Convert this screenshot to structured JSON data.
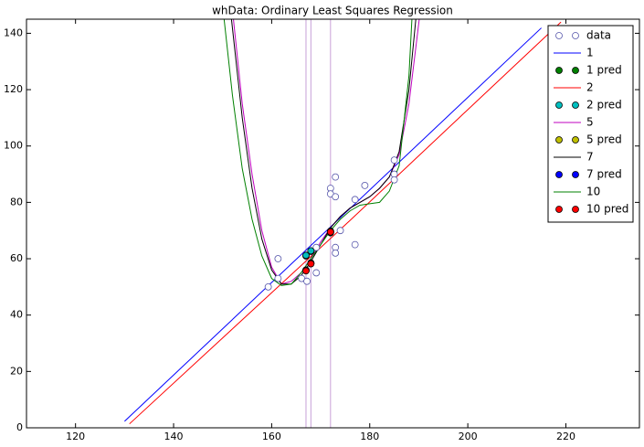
{
  "chart_data": {
    "type": "line",
    "title": "whData: Ordinary Least Squares Regression",
    "xlim": [
      110,
      235
    ],
    "ylim": [
      0,
      145
    ],
    "xticks": [
      120,
      140,
      160,
      180,
      200,
      220
    ],
    "yticks": [
      0,
      20,
      40,
      60,
      80,
      100,
      120,
      140
    ],
    "vlines": [
      167,
      168,
      172
    ],
    "vline_color": "#c8a0d8",
    "legend": "upper right",
    "series": [
      {
        "name": "data",
        "kind": "points",
        "color": "#ffffff",
        "edge": "#5555aa",
        "x": [
          159.3,
          161.3,
          161.3,
          166.1,
          167.2,
          169.1,
          169.1,
          172,
          172,
          173,
          173,
          173,
          173,
          174,
          177,
          177,
          179,
          185,
          185,
          185
        ],
        "values": [
          50,
          60,
          53,
          53,
          52,
          55,
          64,
          85,
          83,
          82,
          89,
          64,
          62,
          70,
          81,
          65,
          86,
          95,
          90,
          88
        ]
      },
      {
        "name": "1",
        "kind": "line",
        "color": "#0000ff",
        "x": [
          130,
          215
        ],
        "values": [
          2.3,
          141.9
        ]
      },
      {
        "name": "1 pred",
        "kind": "points",
        "color": "#008000",
        "edge": "#000000",
        "x": [
          167,
          168,
          172
        ],
        "values": [
          61.0,
          62.6,
          69.2
        ]
      },
      {
        "name": "2",
        "kind": "line",
        "color": "#ff0000",
        "x": [
          131,
          175,
          219
        ],
        "values": [
          1.4,
          72,
          144
        ]
      },
      {
        "name": "2 pred",
        "kind": "points",
        "color": "#00bfbf",
        "edge": "#000000",
        "x": [
          167,
          168,
          172
        ],
        "values": [
          61.2,
          62.8,
          69.4
        ]
      },
      {
        "name": "5",
        "kind": "line",
        "color": "#bf00bf",
        "x": [
          152.2,
          154,
          156,
          158,
          160,
          162,
          164,
          166,
          168,
          170,
          172,
          174,
          176,
          178,
          180,
          182,
          184,
          186,
          188,
          190.1
        ],
        "values": [
          145,
          115,
          90,
          70,
          57,
          51,
          52,
          55,
          60,
          66,
          71,
          75,
          78,
          80,
          82,
          85,
          89,
          97,
          115,
          145
        ]
      },
      {
        "name": "5 pred",
        "kind": "points",
        "color": "#bfbf00",
        "edge": "#000000",
        "x": [
          167,
          168,
          172
        ],
        "values": [
          56,
          58.5,
          69.8
        ]
      },
      {
        "name": "7",
        "kind": "line",
        "color": "#000000",
        "x": [
          151.8,
          154,
          156,
          158,
          160,
          162,
          164,
          166,
          168,
          170,
          172,
          174,
          176,
          178,
          180,
          182,
          184,
          186,
          188,
          189.4
        ],
        "values": [
          145,
          110,
          85,
          67,
          56,
          51,
          51,
          54,
          59,
          65,
          71,
          75,
          78,
          80,
          82,
          85,
          89,
          98,
          120,
          145
        ]
      },
      {
        "name": "7 pred",
        "kind": "points",
        "color": "#0000ff",
        "edge": "#000000",
        "x": [
          167,
          168,
          172
        ],
        "values": [
          55.8,
          58.3,
          69.6
        ]
      },
      {
        "name": "10",
        "kind": "line",
        "color": "#008000",
        "x": [
          150.3,
          152,
          154,
          156,
          158,
          160,
          162,
          164,
          166,
          168,
          170,
          172,
          174,
          176,
          178,
          180,
          182,
          184,
          186,
          188,
          188.6
        ],
        "values": [
          145,
          118,
          92,
          74,
          61,
          53,
          50.5,
          51,
          55,
          60,
          65,
          70,
          74,
          77,
          79,
          79.5,
          80,
          84,
          93,
          125,
          145
        ]
      },
      {
        "name": "10 pred",
        "kind": "points",
        "color": "#ff0000",
        "edge": "#000000",
        "x": [
          167,
          168,
          172
        ],
        "values": [
          55.7,
          58.2,
          69.5
        ]
      }
    ]
  }
}
